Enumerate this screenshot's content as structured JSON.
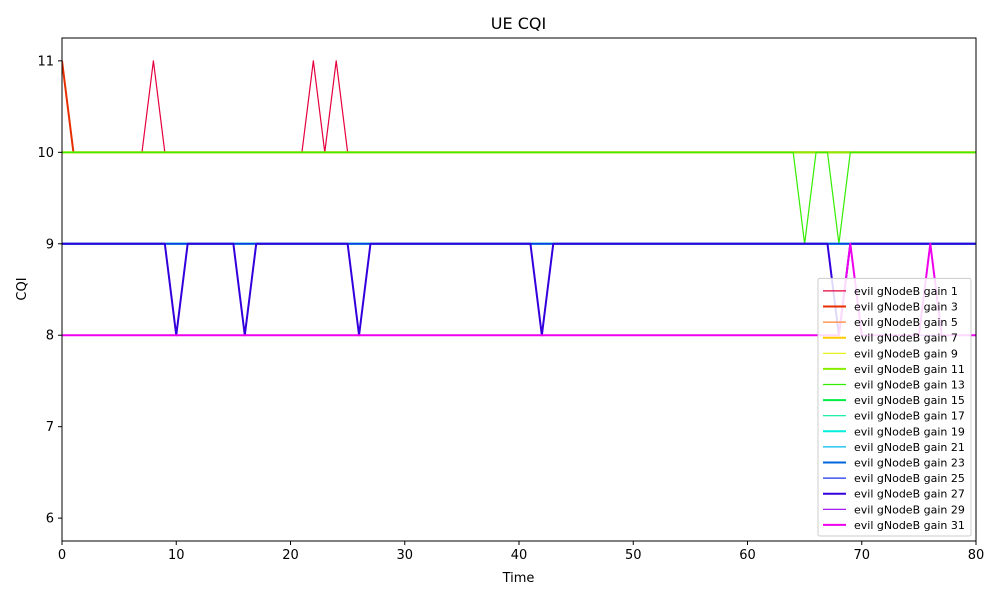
{
  "chart_data": {
    "type": "line",
    "title": "UE CQI",
    "xlabel": "Time",
    "ylabel": "CQI",
    "xlim": [
      0,
      80
    ],
    "ylim": [
      5.75,
      11.25
    ],
    "xticks": [
      0,
      10,
      20,
      30,
      40,
      50,
      60,
      70,
      80
    ],
    "yticks": [
      6,
      7,
      8,
      9,
      10,
      11
    ],
    "grid": false,
    "legend_position": "lower-right",
    "series": [
      {
        "name": "evil gNodeB gain 1",
        "color": "#e6003d",
        "width": 1.2,
        "points": [
          [
            0,
            11
          ],
          [
            1,
            10
          ],
          [
            7,
            10
          ],
          [
            8,
            11
          ],
          [
            9,
            10
          ],
          [
            21,
            10
          ],
          [
            22,
            11
          ],
          [
            23,
            10
          ],
          [
            24,
            11
          ],
          [
            25,
            10
          ],
          [
            80,
            10
          ]
        ]
      },
      {
        "name": "evil gNodeB gain 3",
        "color": "#e62e00",
        "width": 2,
        "points": [
          [
            0,
            11
          ],
          [
            1,
            10
          ],
          [
            80,
            10
          ]
        ]
      },
      {
        "name": "evil gNodeB gain 5",
        "color": "#ff8533",
        "width": 1.2,
        "points": [
          [
            0,
            10
          ],
          [
            80,
            10
          ]
        ]
      },
      {
        "name": "evil gNodeB gain 7",
        "color": "#ffcc00",
        "width": 2,
        "points": [
          [
            0,
            10
          ],
          [
            80,
            10
          ]
        ]
      },
      {
        "name": "evil gNodeB gain 9",
        "color": "#e6f000",
        "width": 1.2,
        "points": [
          [
            0,
            10
          ],
          [
            80,
            10
          ]
        ]
      },
      {
        "name": "evil gNodeB gain 11",
        "color": "#88ee00",
        "width": 2,
        "points": [
          [
            0,
            10
          ],
          [
            80,
            10
          ]
        ]
      },
      {
        "name": "evil gNodeB gain 13",
        "color": "#33ee00",
        "width": 1.2,
        "points": [
          [
            0,
            10
          ],
          [
            64,
            10
          ],
          [
            65,
            9
          ],
          [
            66,
            10
          ],
          [
            67,
            10
          ],
          [
            68,
            9
          ],
          [
            69,
            10
          ],
          [
            80,
            10
          ]
        ]
      },
      {
        "name": "evil gNodeB gain 15",
        "color": "#00ee44",
        "width": 2,
        "points": [
          [
            0,
            9
          ],
          [
            80,
            9
          ]
        ]
      },
      {
        "name": "evil gNodeB gain 17",
        "color": "#00ee99",
        "width": 1.2,
        "points": [
          [
            0,
            9
          ],
          [
            80,
            9
          ]
        ]
      },
      {
        "name": "evil gNodeB gain 19",
        "color": "#00eedd",
        "width": 2,
        "points": [
          [
            0,
            9
          ],
          [
            80,
            9
          ]
        ]
      },
      {
        "name": "evil gNodeB gain 21",
        "color": "#00bbee",
        "width": 1.2,
        "points": [
          [
            0,
            9
          ],
          [
            80,
            9
          ]
        ]
      },
      {
        "name": "evil gNodeB gain 23",
        "color": "#0066dd",
        "width": 2,
        "points": [
          [
            0,
            9
          ],
          [
            80,
            9
          ]
        ]
      },
      {
        "name": "evil gNodeB gain 25",
        "color": "#1a33ee",
        "width": 1.2,
        "points": [
          [
            0,
            9
          ],
          [
            80,
            9
          ]
        ]
      },
      {
        "name": "evil gNodeB gain 27",
        "color": "#3300dd",
        "width": 2,
        "points": [
          [
            0,
            9
          ],
          [
            9,
            9
          ],
          [
            10,
            8
          ],
          [
            11,
            9
          ],
          [
            15,
            9
          ],
          [
            16,
            8
          ],
          [
            17,
            9
          ],
          [
            25,
            9
          ],
          [
            26,
            8
          ],
          [
            27,
            9
          ],
          [
            41,
            9
          ],
          [
            42,
            8
          ],
          [
            43,
            9
          ],
          [
            67,
            9
          ],
          [
            68,
            8
          ],
          [
            69,
            9
          ],
          [
            80,
            9
          ]
        ]
      },
      {
        "name": "evil gNodeB gain 29",
        "color": "#9900ee",
        "width": 1.2,
        "points": [
          [
            0,
            8
          ],
          [
            67,
            8
          ],
          [
            68,
            8
          ],
          [
            69,
            9
          ],
          [
            70,
            8
          ],
          [
            80,
            8
          ]
        ]
      },
      {
        "name": "evil gNodeB gain 31",
        "color": "#ee00ee",
        "width": 2,
        "points": [
          [
            0,
            8
          ],
          [
            68,
            8
          ],
          [
            69,
            9
          ],
          [
            70,
            8
          ],
          [
            75,
            8
          ],
          [
            76,
            9
          ],
          [
            77,
            8
          ],
          [
            80,
            8
          ]
        ]
      }
    ]
  }
}
